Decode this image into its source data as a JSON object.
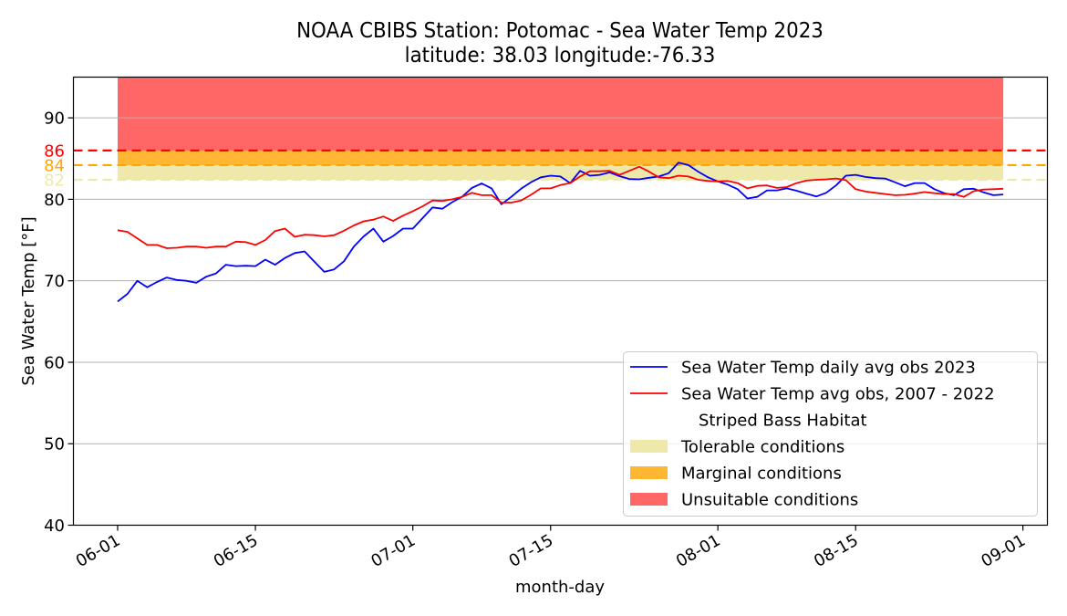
{
  "chart_data": {
    "type": "line",
    "title": "NOAA CBIBS Station: Potomac - Sea Water Temp 2023",
    "subtitle": "latitude: 38.03 longitude:-76.33",
    "xlabel": "month-day",
    "ylabel": "Sea Water Temp [°F]",
    "x_start_date": "06-01",
    "x_days_count": 91,
    "xlim_days": [
      -4.5,
      94.5
    ],
    "ylim": [
      40,
      95
    ],
    "yticks": [
      40,
      50,
      60,
      70,
      80,
      90
    ],
    "xticks": [
      {
        "label": "06-01",
        "day": 0
      },
      {
        "label": "06-15",
        "day": 14
      },
      {
        "label": "07-01",
        "day": 30
      },
      {
        "label": "07-15",
        "day": 44
      },
      {
        "label": "08-01",
        "day": 61
      },
      {
        "label": "08-15",
        "day": 75
      },
      {
        "label": "09-01",
        "day": 92
      }
    ],
    "grid": "horizontal",
    "legend_position": "lower-right",
    "thresholds": [
      {
        "label": "86",
        "value": 86.0,
        "color": "#ff0000"
      },
      {
        "label": "84",
        "value": 84.2,
        "color": "#ffa500"
      },
      {
        "label": "82",
        "value": 82.4,
        "color": "#eee8aa"
      }
    ],
    "bands": [
      {
        "name": "Tolerable conditions",
        "from": 82.4,
        "to": 84.2,
        "color": "#eee8aa",
        "day_from": 0,
        "day_to": 90
      },
      {
        "name": "Marginal conditions",
        "from": 84.2,
        "to": 86.0,
        "color": "#ffa500",
        "day_from": 0,
        "day_to": 90
      },
      {
        "name": "Unsuitable conditions",
        "from": 86.0,
        "to": 95,
        "color": "#ff0000",
        "day_from": 0,
        "day_to": 90
      }
    ],
    "series": [
      {
        "name": "Sea Water Temp daily avg obs 2023",
        "color": "#0000ff",
        "values": [
          67.45,
          68.4,
          70.0,
          69.2,
          69.85,
          70.4,
          70.1,
          70.0,
          69.75,
          70.5,
          70.9,
          71.97,
          71.8,
          71.85,
          71.8,
          72.6,
          71.97,
          72.8,
          73.4,
          73.6,
          72.35,
          71.1,
          71.4,
          72.4,
          74.2,
          75.45,
          76.4,
          74.8,
          75.5,
          76.4,
          76.4,
          77.7,
          79.0,
          78.85,
          79.65,
          80.3,
          81.4,
          81.95,
          81.35,
          79.4,
          80.3,
          81.3,
          82.1,
          82.7,
          82.9,
          82.8,
          82.0,
          83.5,
          82.9,
          83.0,
          83.3,
          82.85,
          82.5,
          82.45,
          82.65,
          82.8,
          83.2,
          84.5,
          84.2,
          83.4,
          82.7,
          82.2,
          81.8,
          81.25,
          80.1,
          80.3,
          81.1,
          81.1,
          81.35,
          81.05,
          80.7,
          80.35,
          80.8,
          81.7,
          82.9,
          83.0,
          82.75,
          82.6,
          82.55,
          82.1,
          81.6,
          82.0,
          82.0,
          81.25,
          80.75,
          80.5,
          81.25,
          81.3,
          80.85,
          80.5,
          80.6
        ]
      },
      {
        "name": "Sea Water Temp avg obs, 2007 - 2022",
        "color": "#ff0000",
        "values": [
          76.2,
          76.0,
          75.2,
          74.4,
          74.4,
          74.0,
          74.05,
          74.2,
          74.2,
          74.05,
          74.2,
          74.2,
          74.8,
          74.75,
          74.4,
          75.0,
          76.1,
          76.4,
          75.4,
          75.65,
          75.6,
          75.45,
          75.6,
          76.15,
          76.8,
          77.3,
          77.5,
          77.9,
          77.35,
          78.0,
          78.55,
          79.15,
          79.85,
          79.8,
          80.0,
          80.3,
          80.8,
          80.5,
          80.5,
          79.6,
          79.6,
          79.85,
          80.55,
          81.35,
          81.35,
          81.75,
          82.0,
          82.8,
          83.45,
          83.45,
          83.5,
          83.0,
          83.5,
          84.0,
          83.4,
          82.7,
          82.6,
          82.9,
          82.8,
          82.4,
          82.25,
          82.2,
          82.25,
          82.0,
          81.35,
          81.65,
          81.7,
          81.4,
          81.5,
          82.0,
          82.3,
          82.4,
          82.45,
          82.55,
          82.35,
          81.25,
          80.95,
          80.8,
          80.65,
          80.5,
          80.55,
          80.7,
          80.9,
          80.75,
          80.65,
          80.65,
          80.3,
          81.0,
          81.2,
          81.25,
          81.3
        ]
      }
    ],
    "legend": {
      "entries": [
        {
          "kind": "line",
          "label": "Sea Water Temp daily avg obs 2023",
          "color": "#0000ff"
        },
        {
          "kind": "line",
          "label": "Sea Water Temp avg obs, 2007 - 2022",
          "color": "#ff0000"
        },
        {
          "kind": "header",
          "label": "Striped Bass Habitat"
        },
        {
          "kind": "patch",
          "label": "Tolerable conditions",
          "color": "#eee8aa"
        },
        {
          "kind": "patch",
          "label": "Marginal conditions",
          "color": "#ffa500"
        },
        {
          "kind": "patch",
          "label": "Unsuitable conditions",
          "color": "#ff0000"
        }
      ]
    }
  }
}
